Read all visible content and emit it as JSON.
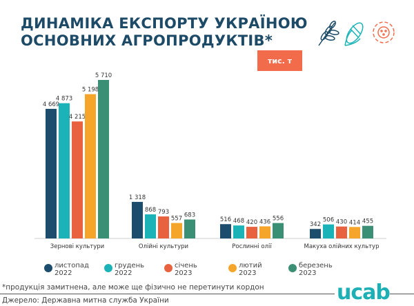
{
  "title_line1": "ДИНАМІКА ЕКСПОРТУ УКРАЇНОЮ",
  "title_line2": "ОСНОВНИХ АГРОПРОДУКТІВ*",
  "unit": "тис. т",
  "icons": [
    "wheat-icon",
    "corn-icon",
    "sunflower-icon"
  ],
  "footnote": "*продукція замитнена, але може ще фізично не перетинути кордон",
  "source": "Джерело: Державна митна служба України",
  "logo": "ucab",
  "chart_data": {
    "type": "bar",
    "categories": [
      "Зернові культури",
      "Олійні культури",
      "Рослинні олії",
      "Макуха олійних культур"
    ],
    "series": [
      {
        "name": "листопад 2022",
        "color": "#1d4d6c",
        "values": [
          4669,
          1318,
          516,
          342
        ]
      },
      {
        "name": "грудень 2022",
        "color": "#1bb3b7",
        "values": [
          4873,
          868,
          468,
          506
        ]
      },
      {
        "name": "січень 2023",
        "color": "#e9623f",
        "values": [
          4215,
          793,
          420,
          430
        ]
      },
      {
        "name": "лютий 2023",
        "color": "#f5a62a",
        "values": [
          5198,
          557,
          436,
          414
        ]
      },
      {
        "name": "березень 2023",
        "color": "#3b8f75",
        "values": [
          5710,
          683,
          556,
          455
        ]
      }
    ],
    "data_labels": [
      [
        "4 669",
        "1 318",
        "516",
        "342"
      ],
      [
        "4 873",
        "868",
        "468",
        "506"
      ],
      [
        "4 215",
        "793",
        "420",
        "430"
      ],
      [
        "5 198",
        "557",
        "436",
        "414"
      ],
      [
        "5 710",
        "683",
        "556",
        "455"
      ]
    ],
    "legend": [
      {
        "line1": "листопад",
        "line2": "2022"
      },
      {
        "line1": "грудень",
        "line2": "2022"
      },
      {
        "line1": "січень",
        "line2": "2023"
      },
      {
        "line1": "лютий",
        "line2": "2023"
      },
      {
        "line1": "березень",
        "line2": "2023"
      }
    ],
    "legend_position": "bottom",
    "grid": false,
    "ylim": [
      0,
      6000
    ]
  }
}
